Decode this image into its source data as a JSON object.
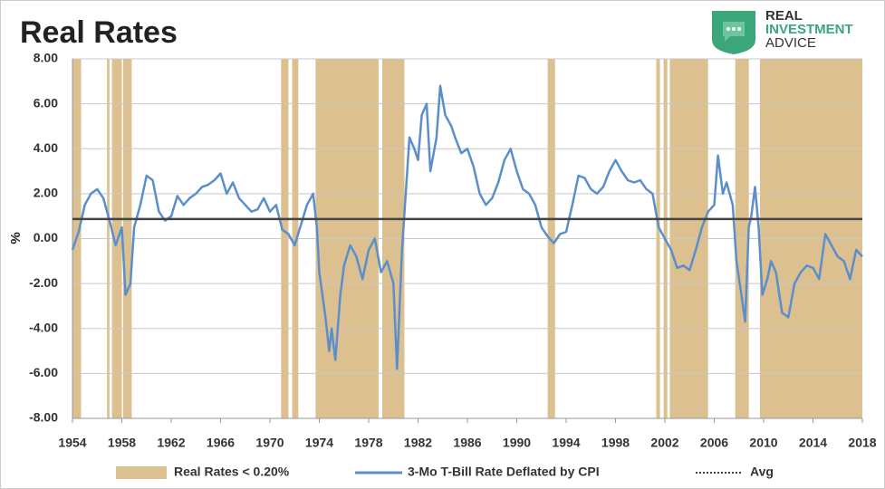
{
  "chart_data": {
    "type": "line",
    "title": "Real Rates",
    "logo": [
      "REAL",
      "INVESTMENT",
      "ADVICE"
    ],
    "ylabel": "%",
    "xlim": [
      1954,
      2018
    ],
    "xticks": [
      1954,
      1958,
      1962,
      1966,
      1970,
      1974,
      1978,
      1982,
      1986,
      1990,
      1994,
      1998,
      2002,
      2006,
      2010,
      2014,
      2018
    ],
    "ylim": [
      -8,
      8
    ],
    "yticks": [
      {
        "value": -8,
        "label": "-8.00"
      },
      {
        "value": -6,
        "label": "-6.00"
      },
      {
        "value": -4,
        "label": "-4.00"
      },
      {
        "value": -2,
        "label": "-2.00"
      },
      {
        "value": 0,
        "label": "0.00"
      },
      {
        "value": 2,
        "label": "2.00"
      },
      {
        "value": 4,
        "label": "4.00"
      },
      {
        "value": 6,
        "label": "6.00"
      },
      {
        "value": 8,
        "label": "8.00"
      }
    ],
    "grid": true,
    "bands": {
      "name": "Real Rates < 0.20%",
      "color": "#dcc08f",
      "spans": [
        [
          1954.0,
          1954.7
        ],
        [
          1956.8,
          1957.0
        ],
        [
          1957.2,
          1958.0
        ],
        [
          1958.1,
          1958.8
        ],
        [
          1970.9,
          1971.5
        ],
        [
          1971.8,
          1972.3
        ],
        [
          1973.7,
          1978.8
        ],
        [
          1979.1,
          1980.9
        ],
        [
          1992.5,
          1993.1
        ],
        [
          2001.3,
          2001.6
        ],
        [
          2001.9,
          2002.2
        ],
        [
          2002.4,
          2005.5
        ],
        [
          2007.7,
          2008.8
        ],
        [
          2009.7,
          2018.0
        ]
      ]
    },
    "avg": {
      "name": "Avg",
      "value": 0.87,
      "color": "#444444"
    },
    "x": [
      1954,
      1954.5,
      1955,
      1955.5,
      1956,
      1956.5,
      1957,
      1957.5,
      1958,
      1958.3,
      1958.7,
      1959,
      1959.5,
      1960,
      1960.5,
      1961,
      1961.5,
      1962,
      1962.5,
      1963,
      1963.5,
      1964,
      1964.5,
      1965,
      1965.5,
      1966,
      1966.5,
      1967,
      1967.5,
      1968,
      1968.5,
      1969,
      1969.5,
      1970,
      1970.5,
      1971,
      1971.5,
      1972,
      1972.5,
      1973,
      1973.5,
      1973.8,
      1974,
      1974.5,
      1974.8,
      1975,
      1975.3,
      1975.7,
      1976,
      1976.5,
      1977,
      1977.5,
      1978,
      1978.5,
      1979,
      1979.5,
      1980,
      1980.3,
      1980.7,
      1981,
      1981.3,
      1981.7,
      1982,
      1982.3,
      1982.7,
      1983,
      1983.5,
      1983.8,
      1984.2,
      1984.7,
      1985,
      1985.5,
      1986,
      1986.5,
      1987,
      1987.5,
      1988,
      1988.5,
      1989,
      1989.5,
      1990,
      1990.5,
      1991,
      1991.5,
      1992,
      1992.5,
      1993,
      1993.5,
      1994,
      1994.5,
      1995,
      1995.5,
      1996,
      1996.5,
      1997,
      1997.5,
      1998,
      1998.5,
      1999,
      1999.5,
      2000,
      2000.5,
      2001,
      2001.5,
      2002,
      2002.5,
      2003,
      2003.5,
      2004,
      2004.5,
      2005,
      2005.5,
      2006,
      2006.3,
      2006.7,
      2007,
      2007.5,
      2007.8,
      2008.2,
      2008.5,
      2008.8,
      2009,
      2009.3,
      2009.6,
      2009.9,
      2010.3,
      2010.6,
      2011,
      2011.5,
      2012,
      2012.5,
      2013,
      2013.5,
      2014,
      2014.5,
      2015,
      2015.5,
      2016,
      2016.5,
      2017,
      2017.5,
      2018
    ],
    "series": [
      {
        "name": "3-Mo T-Bill Rate Deflated by CPI",
        "color": "#5b8fcb",
        "values": [
          -0.5,
          0.3,
          1.5,
          2.0,
          2.2,
          1.8,
          0.8,
          -0.3,
          0.5,
          -2.5,
          -2.0,
          0.5,
          1.5,
          2.8,
          2.6,
          1.2,
          0.8,
          1.0,
          1.9,
          1.5,
          1.8,
          2.0,
          2.3,
          2.4,
          2.6,
          2.9,
          2.0,
          2.5,
          1.8,
          1.5,
          1.2,
          1.3,
          1.8,
          1.2,
          1.5,
          0.4,
          0.2,
          -0.3,
          0.6,
          1.5,
          2.0,
          0.5,
          -1.5,
          -3.5,
          -5.0,
          -4.0,
          -5.4,
          -2.5,
          -1.2,
          -0.3,
          -0.8,
          -1.8,
          -0.5,
          0.0,
          -1.5,
          -1.0,
          -2.0,
          -5.8,
          -0.5,
          2.0,
          4.5,
          4.0,
          3.5,
          5.5,
          6.0,
          3.0,
          4.5,
          6.8,
          5.5,
          5.0,
          4.5,
          3.8,
          4.0,
          3.2,
          2.0,
          1.5,
          1.8,
          2.5,
          3.5,
          4.0,
          3.0,
          2.2,
          2.0,
          1.5,
          0.5,
          0.1,
          -0.2,
          0.2,
          0.3,
          1.5,
          2.8,
          2.7,
          2.2,
          2.0,
          2.3,
          3.0,
          3.5,
          3.0,
          2.6,
          2.5,
          2.6,
          2.2,
          2.0,
          0.5,
          0.0,
          -0.5,
          -1.3,
          -1.2,
          -1.4,
          -0.5,
          0.5,
          1.2,
          1.5,
          3.7,
          2.0,
          2.5,
          1.5,
          -1.0,
          -2.5,
          -3.7,
          0.5,
          1.0,
          2.3,
          0.5,
          -2.5,
          -1.8,
          -1.0,
          -1.5,
          -3.3,
          -3.5,
          -2.0,
          -1.5,
          -1.2,
          -1.3,
          -1.8,
          0.2,
          -0.3,
          -0.8,
          -1.0,
          -1.8,
          -0.5,
          -0.8
        ]
      }
    ]
  }
}
